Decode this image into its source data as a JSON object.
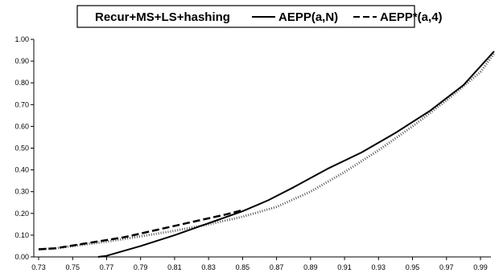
{
  "chart_data": {
    "type": "line",
    "title": "",
    "xlabel": "",
    "ylabel": "",
    "xlim": [
      0.73,
      1.0
    ],
    "ylim": [
      0.0,
      1.0
    ],
    "x_ticks": [
      "0.73",
      "0.75",
      "0.77",
      "0.79",
      "0.81",
      "0.83",
      "0.85",
      "0.87",
      "0.89",
      "0.91",
      "0.93",
      "0.95",
      "0.97",
      "0.99"
    ],
    "y_ticks": [
      "0.00",
      "0.10",
      "0.20",
      "0.30",
      "0.40",
      "0.50",
      "0.60",
      "0.70",
      "0.80",
      "0.90",
      "1.00"
    ],
    "grid": false,
    "legend_position": "top",
    "series": [
      {
        "name": "Recur+MS+LS+hashing",
        "style": "dotted",
        "color": "#555555",
        "x": [
          0.73,
          0.74,
          0.75,
          0.77,
          0.79,
          0.81,
          0.83,
          0.85,
          0.87,
          0.89,
          0.91,
          0.93,
          0.95,
          0.97,
          0.99,
          0.998
        ],
        "y": [
          0.035,
          0.04,
          0.05,
          0.07,
          0.095,
          0.12,
          0.15,
          0.185,
          0.23,
          0.3,
          0.39,
          0.49,
          0.6,
          0.72,
          0.85,
          0.935
        ]
      },
      {
        "name": "AEPP(a,N)",
        "style": "solid",
        "color": "#000000",
        "x": [
          0.765,
          0.77,
          0.79,
          0.81,
          0.83,
          0.85,
          0.865,
          0.88,
          0.9,
          0.92,
          0.94,
          0.96,
          0.98,
          0.998
        ],
        "y": [
          0.0,
          0.005,
          0.05,
          0.1,
          0.155,
          0.21,
          0.26,
          0.32,
          0.405,
          0.48,
          0.57,
          0.67,
          0.79,
          0.945
        ]
      },
      {
        "name": "AEPP*(a,4)",
        "style": "dashed",
        "color": "#000000",
        "x": [
          0.73,
          0.74,
          0.76,
          0.78,
          0.8,
          0.82,
          0.84,
          0.85
        ],
        "y": [
          0.035,
          0.04,
          0.065,
          0.09,
          0.125,
          0.16,
          0.195,
          0.215
        ]
      }
    ]
  }
}
